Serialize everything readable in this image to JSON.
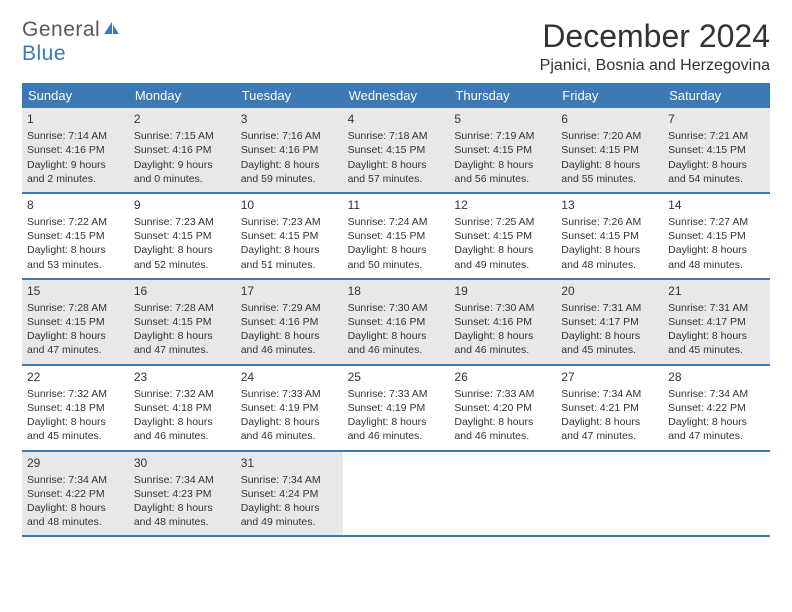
{
  "logo": {
    "text1": "General",
    "text2": "Blue"
  },
  "title": "December 2024",
  "location": "Pjanici, Bosnia and Herzegovina",
  "colors": {
    "header_bg": "#3b7ab5",
    "header_text": "#ffffff",
    "border": "#3b7ab5",
    "shade": "#e8e8e8",
    "text": "#333333",
    "logo_gray": "#595959",
    "logo_blue": "#3b7ab5"
  },
  "day_names": [
    "Sunday",
    "Monday",
    "Tuesday",
    "Wednesday",
    "Thursday",
    "Friday",
    "Saturday"
  ],
  "weeks": [
    [
      {
        "n": "1",
        "shade": true,
        "sr": "Sunrise: 7:14 AM",
        "ss": "Sunset: 4:16 PM",
        "d1": "Daylight: 9 hours",
        "d2": "and 2 minutes."
      },
      {
        "n": "2",
        "shade": true,
        "sr": "Sunrise: 7:15 AM",
        "ss": "Sunset: 4:16 PM",
        "d1": "Daylight: 9 hours",
        "d2": "and 0 minutes."
      },
      {
        "n": "3",
        "shade": true,
        "sr": "Sunrise: 7:16 AM",
        "ss": "Sunset: 4:16 PM",
        "d1": "Daylight: 8 hours",
        "d2": "and 59 minutes."
      },
      {
        "n": "4",
        "shade": true,
        "sr": "Sunrise: 7:18 AM",
        "ss": "Sunset: 4:15 PM",
        "d1": "Daylight: 8 hours",
        "d2": "and 57 minutes."
      },
      {
        "n": "5",
        "shade": true,
        "sr": "Sunrise: 7:19 AM",
        "ss": "Sunset: 4:15 PM",
        "d1": "Daylight: 8 hours",
        "d2": "and 56 minutes."
      },
      {
        "n": "6",
        "shade": true,
        "sr": "Sunrise: 7:20 AM",
        "ss": "Sunset: 4:15 PM",
        "d1": "Daylight: 8 hours",
        "d2": "and 55 minutes."
      },
      {
        "n": "7",
        "shade": true,
        "sr": "Sunrise: 7:21 AM",
        "ss": "Sunset: 4:15 PM",
        "d1": "Daylight: 8 hours",
        "d2": "and 54 minutes."
      }
    ],
    [
      {
        "n": "8",
        "shade": false,
        "sr": "Sunrise: 7:22 AM",
        "ss": "Sunset: 4:15 PM",
        "d1": "Daylight: 8 hours",
        "d2": "and 53 minutes."
      },
      {
        "n": "9",
        "shade": false,
        "sr": "Sunrise: 7:23 AM",
        "ss": "Sunset: 4:15 PM",
        "d1": "Daylight: 8 hours",
        "d2": "and 52 minutes."
      },
      {
        "n": "10",
        "shade": false,
        "sr": "Sunrise: 7:23 AM",
        "ss": "Sunset: 4:15 PM",
        "d1": "Daylight: 8 hours",
        "d2": "and 51 minutes."
      },
      {
        "n": "11",
        "shade": false,
        "sr": "Sunrise: 7:24 AM",
        "ss": "Sunset: 4:15 PM",
        "d1": "Daylight: 8 hours",
        "d2": "and 50 minutes."
      },
      {
        "n": "12",
        "shade": false,
        "sr": "Sunrise: 7:25 AM",
        "ss": "Sunset: 4:15 PM",
        "d1": "Daylight: 8 hours",
        "d2": "and 49 minutes."
      },
      {
        "n": "13",
        "shade": false,
        "sr": "Sunrise: 7:26 AM",
        "ss": "Sunset: 4:15 PM",
        "d1": "Daylight: 8 hours",
        "d2": "and 48 minutes."
      },
      {
        "n": "14",
        "shade": false,
        "sr": "Sunrise: 7:27 AM",
        "ss": "Sunset: 4:15 PM",
        "d1": "Daylight: 8 hours",
        "d2": "and 48 minutes."
      }
    ],
    [
      {
        "n": "15",
        "shade": true,
        "sr": "Sunrise: 7:28 AM",
        "ss": "Sunset: 4:15 PM",
        "d1": "Daylight: 8 hours",
        "d2": "and 47 minutes."
      },
      {
        "n": "16",
        "shade": true,
        "sr": "Sunrise: 7:28 AM",
        "ss": "Sunset: 4:15 PM",
        "d1": "Daylight: 8 hours",
        "d2": "and 47 minutes."
      },
      {
        "n": "17",
        "shade": true,
        "sr": "Sunrise: 7:29 AM",
        "ss": "Sunset: 4:16 PM",
        "d1": "Daylight: 8 hours",
        "d2": "and 46 minutes."
      },
      {
        "n": "18",
        "shade": true,
        "sr": "Sunrise: 7:30 AM",
        "ss": "Sunset: 4:16 PM",
        "d1": "Daylight: 8 hours",
        "d2": "and 46 minutes."
      },
      {
        "n": "19",
        "shade": true,
        "sr": "Sunrise: 7:30 AM",
        "ss": "Sunset: 4:16 PM",
        "d1": "Daylight: 8 hours",
        "d2": "and 46 minutes."
      },
      {
        "n": "20",
        "shade": true,
        "sr": "Sunrise: 7:31 AM",
        "ss": "Sunset: 4:17 PM",
        "d1": "Daylight: 8 hours",
        "d2": "and 45 minutes."
      },
      {
        "n": "21",
        "shade": true,
        "sr": "Sunrise: 7:31 AM",
        "ss": "Sunset: 4:17 PM",
        "d1": "Daylight: 8 hours",
        "d2": "and 45 minutes."
      }
    ],
    [
      {
        "n": "22",
        "shade": false,
        "sr": "Sunrise: 7:32 AM",
        "ss": "Sunset: 4:18 PM",
        "d1": "Daylight: 8 hours",
        "d2": "and 45 minutes."
      },
      {
        "n": "23",
        "shade": false,
        "sr": "Sunrise: 7:32 AM",
        "ss": "Sunset: 4:18 PM",
        "d1": "Daylight: 8 hours",
        "d2": "and 46 minutes."
      },
      {
        "n": "24",
        "shade": false,
        "sr": "Sunrise: 7:33 AM",
        "ss": "Sunset: 4:19 PM",
        "d1": "Daylight: 8 hours",
        "d2": "and 46 minutes."
      },
      {
        "n": "25",
        "shade": false,
        "sr": "Sunrise: 7:33 AM",
        "ss": "Sunset: 4:19 PM",
        "d1": "Daylight: 8 hours",
        "d2": "and 46 minutes."
      },
      {
        "n": "26",
        "shade": false,
        "sr": "Sunrise: 7:33 AM",
        "ss": "Sunset: 4:20 PM",
        "d1": "Daylight: 8 hours",
        "d2": "and 46 minutes."
      },
      {
        "n": "27",
        "shade": false,
        "sr": "Sunrise: 7:34 AM",
        "ss": "Sunset: 4:21 PM",
        "d1": "Daylight: 8 hours",
        "d2": "and 47 minutes."
      },
      {
        "n": "28",
        "shade": false,
        "sr": "Sunrise: 7:34 AM",
        "ss": "Sunset: 4:22 PM",
        "d1": "Daylight: 8 hours",
        "d2": "and 47 minutes."
      }
    ],
    [
      {
        "n": "29",
        "shade": true,
        "sr": "Sunrise: 7:34 AM",
        "ss": "Sunset: 4:22 PM",
        "d1": "Daylight: 8 hours",
        "d2": "and 48 minutes."
      },
      {
        "n": "30",
        "shade": true,
        "sr": "Sunrise: 7:34 AM",
        "ss": "Sunset: 4:23 PM",
        "d1": "Daylight: 8 hours",
        "d2": "and 48 minutes."
      },
      {
        "n": "31",
        "shade": true,
        "sr": "Sunrise: 7:34 AM",
        "ss": "Sunset: 4:24 PM",
        "d1": "Daylight: 8 hours",
        "d2": "and 49 minutes."
      },
      {
        "empty": true
      },
      {
        "empty": true
      },
      {
        "empty": true
      },
      {
        "empty": true
      }
    ]
  ]
}
